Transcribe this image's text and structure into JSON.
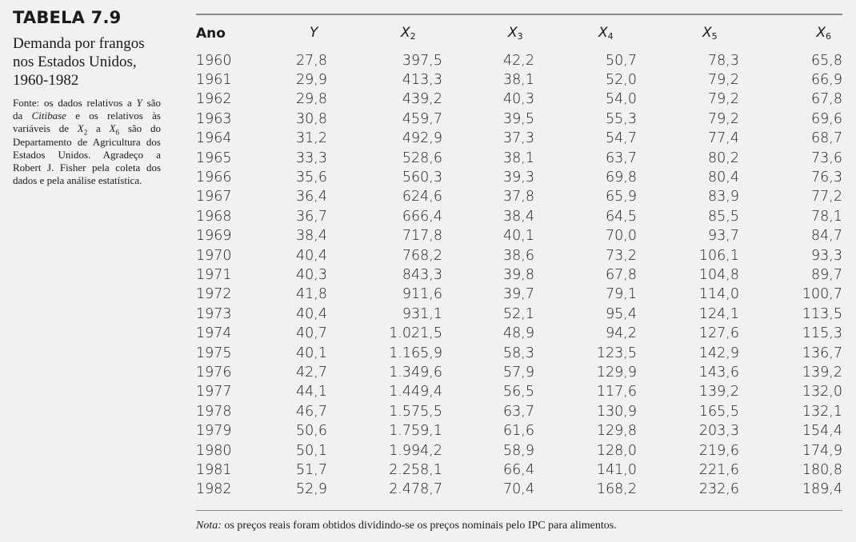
{
  "sidebar": {
    "label": "TABELA 7.9",
    "caption": "Demanda por frangos nos Estados Unidos, 1960-1982",
    "source_parts": {
      "p1": "Fonte: os dados relativos a ",
      "y": "Y",
      "p2": " são da ",
      "citibase": "Citibase",
      "p3": " e os relativos às variáveis de ",
      "x": "X",
      "sub_a": "2",
      "p4": " a ",
      "x_b": "X",
      "sub_b": "6",
      "p5": " são do Departamento de Agricultura dos Estados Unidos. Agradeço a Robert J. Fisher pela coleta dos dados e pela análise estatística."
    }
  },
  "table": {
    "headers": [
      {
        "main": "Ano",
        "sub": ""
      },
      {
        "main": "Y",
        "sub": ""
      },
      {
        "main": "X",
        "sub": "2"
      },
      {
        "main": "X",
        "sub": "3"
      },
      {
        "main": "X",
        "sub": "4"
      },
      {
        "main": "X",
        "sub": "5"
      },
      {
        "main": "X",
        "sub": "6"
      }
    ],
    "rows": [
      [
        "1960",
        "27,8",
        "397,5",
        "42,2",
        "50,7",
        "78,3",
        "65,8"
      ],
      [
        "1961",
        "29,9",
        "413,3",
        "38,1",
        "52,0",
        "79,2",
        "66,9"
      ],
      [
        "1962",
        "29,8",
        "439,2",
        "40,3",
        "54,0",
        "79,2",
        "67,8"
      ],
      [
        "1963",
        "30,8",
        "459,7",
        "39,5",
        "55,3",
        "79,2",
        "69,6"
      ],
      [
        "1964",
        "31,2",
        "492,9",
        "37,3",
        "54,7",
        "77,4",
        "68,7"
      ],
      [
        "1965",
        "33,3",
        "528,6",
        "38,1",
        "63,7",
        "80,2",
        "73,6"
      ],
      [
        "1966",
        "35,6",
        "560,3",
        "39,3",
        "69,8",
        "80,4",
        "76,3"
      ],
      [
        "1967",
        "36,4",
        "624,6",
        "37,8",
        "65,9",
        "83,9",
        "77,2"
      ],
      [
        "1968",
        "36,7",
        "666,4",
        "38,4",
        "64,5",
        "85,5",
        "78,1"
      ],
      [
        "1969",
        "38,4",
        "717,8",
        "40,1",
        "70,0",
        "93,7",
        "84,7"
      ],
      [
        "1970",
        "40,4",
        "768,2",
        "38,6",
        "73,2",
        "106,1",
        "93,3"
      ],
      [
        "1971",
        "40,3",
        "843,3",
        "39,8",
        "67,8",
        "104,8",
        "89,7"
      ],
      [
        "1972",
        "41,8",
        "911,6",
        "39,7",
        "79,1",
        "114,0",
        "100,7"
      ],
      [
        "1973",
        "40,4",
        "931,1",
        "52,1",
        "95,4",
        "124,1",
        "113,5"
      ],
      [
        "1974",
        "40,7",
        "1.021,5",
        "48,9",
        "94,2",
        "127,6",
        "115,3"
      ],
      [
        "1975",
        "40,1",
        "1.165,9",
        "58,3",
        "123,5",
        "142,9",
        "136,7"
      ],
      [
        "1976",
        "42,7",
        "1.349,6",
        "57,9",
        "129,9",
        "143,6",
        "139,2"
      ],
      [
        "1977",
        "44,1",
        "1.449,4",
        "56,5",
        "117,6",
        "139,2",
        "132,0"
      ],
      [
        "1978",
        "46,7",
        "1.575,5",
        "63,7",
        "130,9",
        "165,5",
        "132,1"
      ],
      [
        "1979",
        "50,6",
        "1.759,1",
        "61,6",
        "129,8",
        "203,3",
        "154,4"
      ],
      [
        "1980",
        "50,1",
        "1.994,2",
        "58,9",
        "128,0",
        "219,6",
        "174,9"
      ],
      [
        "1981",
        "51,7",
        "2.258,1",
        "66,4",
        "141,0",
        "221,6",
        "180,8"
      ],
      [
        "1982",
        "52,9",
        "2.478,7",
        "70,4",
        "168,2",
        "232,6",
        "189,4"
      ]
    ]
  },
  "note": {
    "label": "Nota:",
    "text": " os preços reais foram obtidos dividindo-se os preços nominais pelo IPC para alimentos."
  }
}
